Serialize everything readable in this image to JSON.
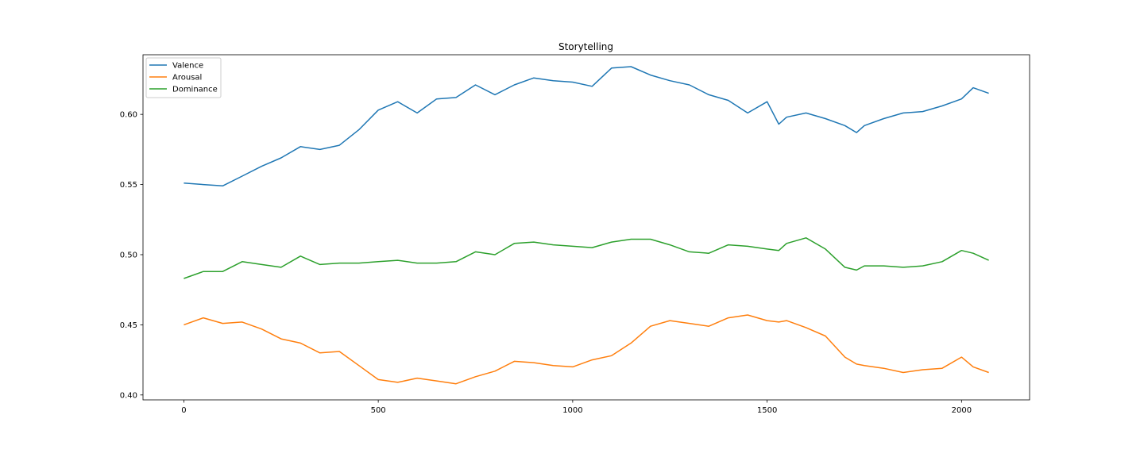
{
  "chart_data": {
    "type": "line",
    "title": "Storytelling",
    "xlabel": "",
    "ylabel": "",
    "xlim": [
      -105,
      2175
    ],
    "ylim": [
      0.3965,
      0.6425
    ],
    "xticks": [
      0,
      500,
      1000,
      1500,
      2000
    ],
    "yticks": [
      0.4,
      0.45,
      0.5,
      0.55,
      0.6
    ],
    "ytick_labels": [
      "0.40",
      "0.45",
      "0.50",
      "0.55",
      "0.60"
    ],
    "xtick_labels": [
      "0",
      "500",
      "1000",
      "1500",
      "2000"
    ],
    "grid": false,
    "legend_position": "top-left",
    "x": [
      0,
      50,
      100,
      150,
      200,
      250,
      300,
      350,
      400,
      450,
      500,
      550,
      600,
      650,
      700,
      750,
      800,
      850,
      900,
      950,
      1000,
      1050,
      1100,
      1150,
      1200,
      1250,
      1300,
      1350,
      1400,
      1450,
      1500,
      1530,
      1550,
      1600,
      1650,
      1700,
      1730,
      1750,
      1800,
      1850,
      1900,
      1950,
      2000,
      2030,
      2070
    ],
    "series": [
      {
        "name": "Valence",
        "color": "#1f77b4",
        "values": [
          0.551,
          0.55,
          0.549,
          0.556,
          0.563,
          0.569,
          0.577,
          0.575,
          0.578,
          0.589,
          0.603,
          0.609,
          0.601,
          0.611,
          0.612,
          0.621,
          0.614,
          0.621,
          0.626,
          0.624,
          0.623,
          0.62,
          0.633,
          0.634,
          0.628,
          0.624,
          0.621,
          0.614,
          0.61,
          0.601,
          0.609,
          0.593,
          0.598,
          0.601,
          0.597,
          0.592,
          0.587,
          0.592,
          0.597,
          0.601,
          0.602,
          0.606,
          0.611,
          0.619,
          0.615
        ]
      },
      {
        "name": "Arousal",
        "color": "#ff7f0e",
        "values": [
          0.45,
          0.455,
          0.451,
          0.452,
          0.447,
          0.44,
          0.437,
          0.43,
          0.431,
          0.421,
          0.411,
          0.409,
          0.412,
          0.41,
          0.408,
          0.413,
          0.417,
          0.424,
          0.423,
          0.421,
          0.42,
          0.425,
          0.428,
          0.437,
          0.449,
          0.453,
          0.451,
          0.449,
          0.455,
          0.457,
          0.453,
          0.452,
          0.453,
          0.448,
          0.442,
          0.427,
          0.422,
          0.421,
          0.419,
          0.416,
          0.418,
          0.419,
          0.427,
          0.42,
          0.416
        ]
      },
      {
        "name": "Dominance",
        "color": "#2ca02c",
        "values": [
          0.483,
          0.488,
          0.488,
          0.495,
          0.493,
          0.491,
          0.499,
          0.493,
          0.494,
          0.494,
          0.495,
          0.496,
          0.494,
          0.494,
          0.495,
          0.502,
          0.5,
          0.508,
          0.509,
          0.507,
          0.506,
          0.505,
          0.509,
          0.511,
          0.511,
          0.507,
          0.502,
          0.501,
          0.507,
          0.506,
          0.504,
          0.503,
          0.508,
          0.512,
          0.504,
          0.491,
          0.489,
          0.492,
          0.492,
          0.491,
          0.492,
          0.495,
          0.503,
          0.501,
          0.496
        ]
      }
    ]
  }
}
